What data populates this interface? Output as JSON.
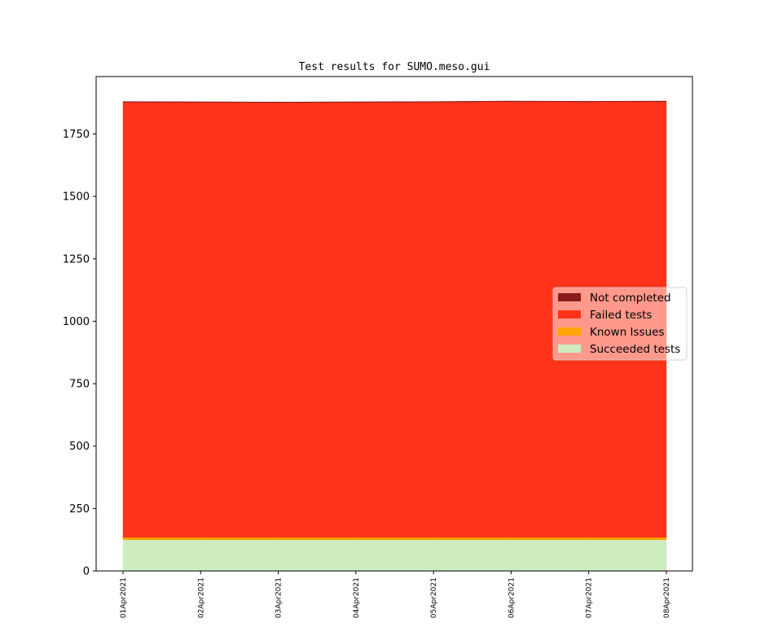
{
  "chart_data": {
    "type": "area",
    "stacked": true,
    "title": "Test results for SUMO.meso.gui",
    "xlabel": "",
    "ylabel": "",
    "x": [
      "01Apr2021",
      "02Apr2021",
      "03Apr2021",
      "04Apr2021",
      "05Apr2021",
      "06Apr2021",
      "07Apr2021",
      "08Apr2021"
    ],
    "ylim": [
      0,
      1980
    ],
    "yticks": [
      0,
      250,
      500,
      750,
      1000,
      1250,
      1500,
      1750
    ],
    "grid": false,
    "legend_position": "center-right",
    "series": [
      {
        "name": "Succeeded tests",
        "color": "#cfecc0",
        "values": [
          125,
          125,
          125,
          125,
          125,
          125,
          125,
          125
        ]
      },
      {
        "name": "Known Issues",
        "color": "#ffa500",
        "values": [
          10,
          10,
          10,
          10,
          10,
          10,
          10,
          10
        ]
      },
      {
        "name": "Failed tests",
        "color": "#ff3319",
        "values": [
          1743,
          1742,
          1741,
          1742,
          1743,
          1745,
          1744,
          1745
        ]
      },
      {
        "name": "Not completed",
        "color": "#8b1a1a",
        "values": [
          2,
          2,
          2,
          2,
          2,
          2,
          2,
          2
        ]
      }
    ],
    "legend_order": [
      "Not completed",
      "Failed tests",
      "Known Issues",
      "Succeeded tests"
    ]
  }
}
